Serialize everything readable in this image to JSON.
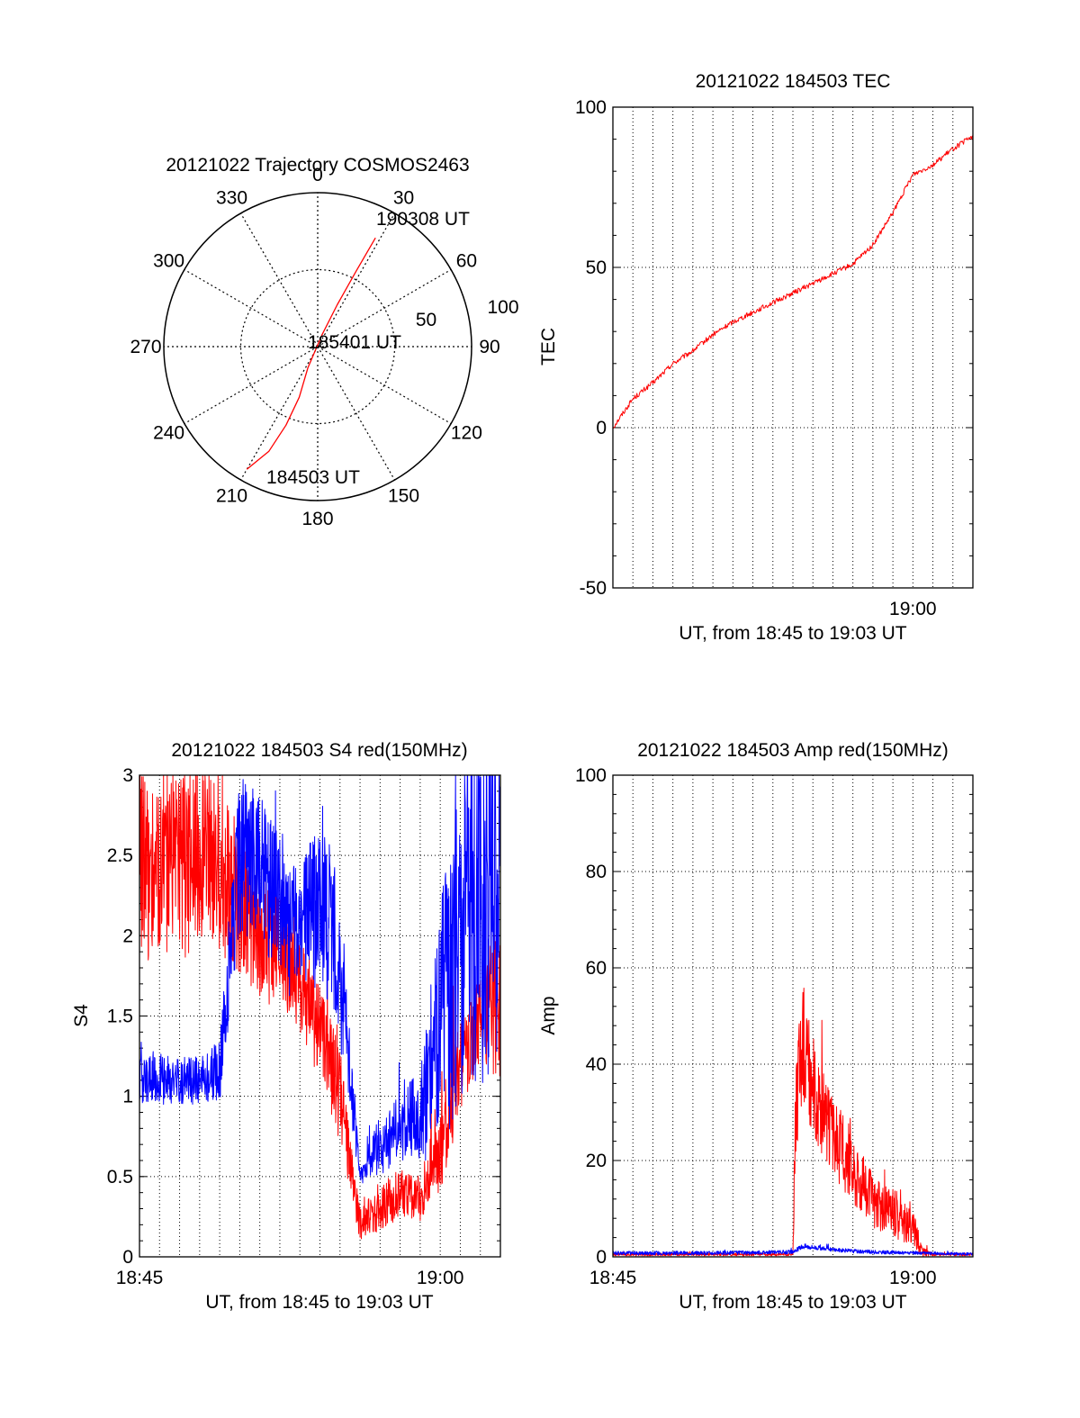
{
  "chart_data": [
    {
      "type": "polar",
      "title": "20121022 Trajectory COSMOS2463",
      "angle_labels": [
        "0",
        "30",
        "60",
        "90",
        "120",
        "150",
        "180",
        "210",
        "240",
        "270",
        "300",
        "330"
      ],
      "radius_labels": [
        "50",
        "100"
      ],
      "rlim": [
        0,
        100
      ],
      "grid": true,
      "trajectory": {
        "color": "#ff0000",
        "points": [
          {
            "azimuth": 210,
            "r": 92
          },
          {
            "azimuth": 205,
            "r": 75
          },
          {
            "azimuth": 202,
            "r": 55
          },
          {
            "azimuth": 200,
            "r": 35
          },
          {
            "azimuth": 205,
            "r": 15
          },
          {
            "azimuth": 20,
            "r": 8
          },
          {
            "azimuth": 25,
            "r": 30
          },
          {
            "azimuth": 27,
            "r": 55
          },
          {
            "azimuth": 28,
            "r": 80
          }
        ]
      },
      "annotations": [
        "190308 UT",
        "185401 UT",
        "184503 UT"
      ]
    },
    {
      "type": "line",
      "title": "20121022 184503 TEC",
      "xlabel": "UT, from 18:45 to 19:03 UT",
      "ylabel": "TEC",
      "xlim": [
        "18:45",
        "19:03"
      ],
      "ylim": [
        -50,
        100
      ],
      "y_ticks": [
        "100",
        "50",
        "0",
        "-50"
      ],
      "x_tick_labels": [
        "19:00"
      ],
      "grid": true,
      "series": [
        {
          "color": "#ff0000",
          "x": [
            "18:45:00",
            "18:46:00",
            "18:47:00",
            "18:48:00",
            "18:49:00",
            "18:50:00",
            "18:51:00",
            "18:52:00",
            "18:53:00",
            "18:54:00",
            "18:55:00",
            "18:56:00",
            "18:57:00",
            "18:58:00",
            "18:59:00",
            "19:00:00",
            "19:01:00",
            "19:02:00",
            "19:03:00"
          ],
          "values": [
            0,
            9,
            14,
            20,
            24,
            29,
            33,
            36,
            39,
            42,
            45,
            48,
            51,
            57,
            67,
            79,
            82,
            87,
            91
          ]
        }
      ]
    },
    {
      "type": "line",
      "title": "20121022 184503 S4 red(150MHz)",
      "xlabel": "UT, from 18:45 to 19:03 UT",
      "ylabel": "S4",
      "xlim": [
        "18:45",
        "19:03"
      ],
      "ylim": [
        0,
        3
      ],
      "y_ticks": [
        "3",
        "2.5",
        "2",
        "1.5",
        "1",
        "0.5",
        "0"
      ],
      "x_tick_labels": [
        "18:45",
        "19:00"
      ],
      "grid": true,
      "series": [
        {
          "color": "#ff0000",
          "x": [
            "18:45:00",
            "18:46:00",
            "18:47:00",
            "18:48:00",
            "18:49:00",
            "18:50:00",
            "18:51:00",
            "18:52:00",
            "18:53:00",
            "18:54:00",
            "18:55:00",
            "18:56:00",
            "18:57:00",
            "18:58:00",
            "18:59:00",
            "19:00:00",
            "19:01:00",
            "19:02:00",
            "19:03:00"
          ],
          "values": [
            2.4,
            2.5,
            2.4,
            2.6,
            2.4,
            2.2,
            2.0,
            1.9,
            1.7,
            1.4,
            1.0,
            0.2,
            0.3,
            0.4,
            0.35,
            0.7,
            1.2,
            1.5,
            1.6
          ],
          "noise": [
            0.6,
            0.6,
            0.6,
            0.6,
            0.5,
            0.5,
            0.4,
            0.4,
            0.3,
            0.3,
            0.3,
            0.1,
            0.15,
            0.15,
            0.15,
            0.3,
            0.3,
            0.3,
            0.5
          ]
        },
        {
          "color": "#0000ff",
          "x": [
            "18:45:00",
            "18:46:00",
            "18:47:00",
            "18:48:00",
            "18:49:00",
            "18:50:00",
            "18:51:00",
            "18:52:00",
            "18:53:00",
            "18:54:00",
            "18:55:00",
            "18:56:00",
            "18:57:00",
            "18:58:00",
            "18:59:00",
            "19:00:00",
            "19:01:00",
            "19:02:00",
            "19:03:00"
          ],
          "values": [
            1.1,
            1.1,
            1.1,
            1.1,
            1.15,
            2.5,
            2.4,
            2.2,
            2.0,
            2.3,
            1.8,
            0.5,
            0.7,
            0.8,
            0.9,
            1.4,
            2.0,
            2.2,
            2.5
          ],
          "noise": [
            0.15,
            0.15,
            0.15,
            0.15,
            0.2,
            0.5,
            0.5,
            0.4,
            0.4,
            0.6,
            0.5,
            0.05,
            0.2,
            0.2,
            0.3,
            0.8,
            1.0,
            1.2,
            1.2
          ]
        }
      ]
    },
    {
      "type": "line",
      "title": "20121022 184503 Amp red(150MHz)",
      "xlabel": "UT, from 18:45 to 19:03 UT",
      "ylabel": "Amp",
      "xlim": [
        "18:45",
        "19:03"
      ],
      "ylim": [
        0,
        100
      ],
      "y_ticks": [
        "100",
        "80",
        "60",
        "40",
        "20",
        "0"
      ],
      "x_tick_labels": [
        "18:45",
        "19:00"
      ],
      "grid": true,
      "series": [
        {
          "color": "#ff0000",
          "x": [
            "18:45:00",
            "18:50:00",
            "18:54:00",
            "18:54:10",
            "18:54:30",
            "18:55:00",
            "18:55:30",
            "18:56:00",
            "18:56:30",
            "18:57:00",
            "18:57:30",
            "18:58:00",
            "18:58:30",
            "18:59:00",
            "18:59:30",
            "19:00:00",
            "19:00:30",
            "19:01:00",
            "19:03:00"
          ],
          "values": [
            0.5,
            0.5,
            0.5,
            35,
            45,
            35,
            30,
            25,
            22,
            18,
            15,
            12,
            10,
            9,
            8,
            6,
            1,
            0.5,
            0.5
          ],
          "noise": [
            0.3,
            0.3,
            0.3,
            15,
            12,
            10,
            9,
            8,
            8,
            7,
            6,
            6,
            5,
            5,
            5,
            4,
            1,
            0.3,
            0.3
          ]
        },
        {
          "color": "#0000ff",
          "x": [
            "18:45:00",
            "18:50:00",
            "18:54:00",
            "18:54:30",
            "18:55:00",
            "18:56:00",
            "18:57:00",
            "18:58:00",
            "19:00:00",
            "19:03:00"
          ],
          "values": [
            0.8,
            0.8,
            1.0,
            2.2,
            2.0,
            1.5,
            1.2,
            1.0,
            0.8,
            0.6
          ],
          "noise": [
            0.4,
            0.4,
            0.4,
            0.6,
            0.5,
            0.4,
            0.4,
            0.4,
            0.3,
            0.3
          ]
        }
      ]
    }
  ]
}
